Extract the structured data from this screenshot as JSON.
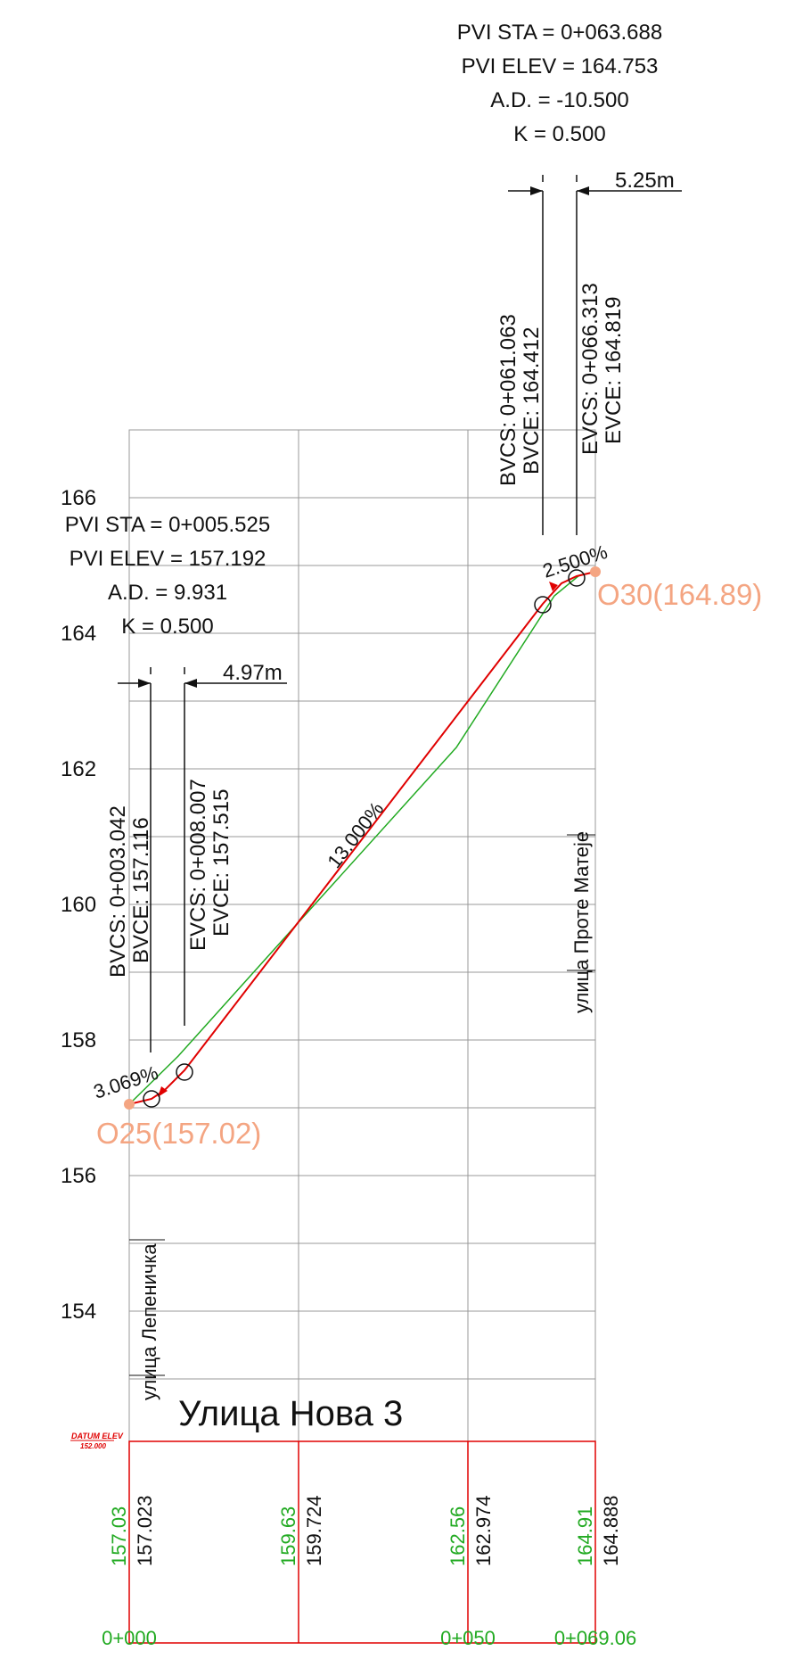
{
  "top_pvi": {
    "sta": "PVI STA = 0+063.688",
    "elev": "PVI ELEV = 164.753",
    "ad": "A.D. = -10.500",
    "k": "K = 0.500",
    "length": "5.25m",
    "bvcs": "BVCS: 0+061.063",
    "bvce": "BVCE: 164.412",
    "evcs": "EVCS: 0+066.313",
    "evce": "EVCE: 164.819"
  },
  "bottom_pvi": {
    "sta": "PVI STA = 0+005.525",
    "elev": "PVI ELEV = 157.192",
    "ad": "A.D. = 9.931",
    "k": "K = 0.500",
    "length": "4.97m",
    "bvcs": "BVCS: 0+003.042",
    "bvce": "BVCE: 157.116",
    "evcs": "EVCS: 0+008.007",
    "evce": "EVCE: 157.515"
  },
  "elevation_ticks": [
    "166",
    "164",
    "162",
    "160",
    "158",
    "156",
    "154"
  ],
  "grades": {
    "start": "3.069%",
    "middle": "13.000%",
    "end": "2.500%"
  },
  "points": {
    "start": "O25(157.02)",
    "end": "O30(164.89)"
  },
  "streets": {
    "left": "улица Лепеничка",
    "right": "улица Проте Матеје",
    "title": "Улица Нова 3"
  },
  "datum": {
    "line1": "DATUM ELEV",
    "line2": "152.000"
  },
  "band": {
    "existing": [
      "157.03",
      "159.63",
      "162.56",
      "164.91"
    ],
    "design": [
      "157.023",
      "159.724",
      "162.974",
      "164.888"
    ]
  },
  "stations": [
    "0+000",
    "0+050",
    "0+069.06"
  ],
  "colors": {
    "design_line": "#e00000",
    "existing_line": "#22aa22",
    "point_label": "#f4a582",
    "grid": "#999999"
  }
}
